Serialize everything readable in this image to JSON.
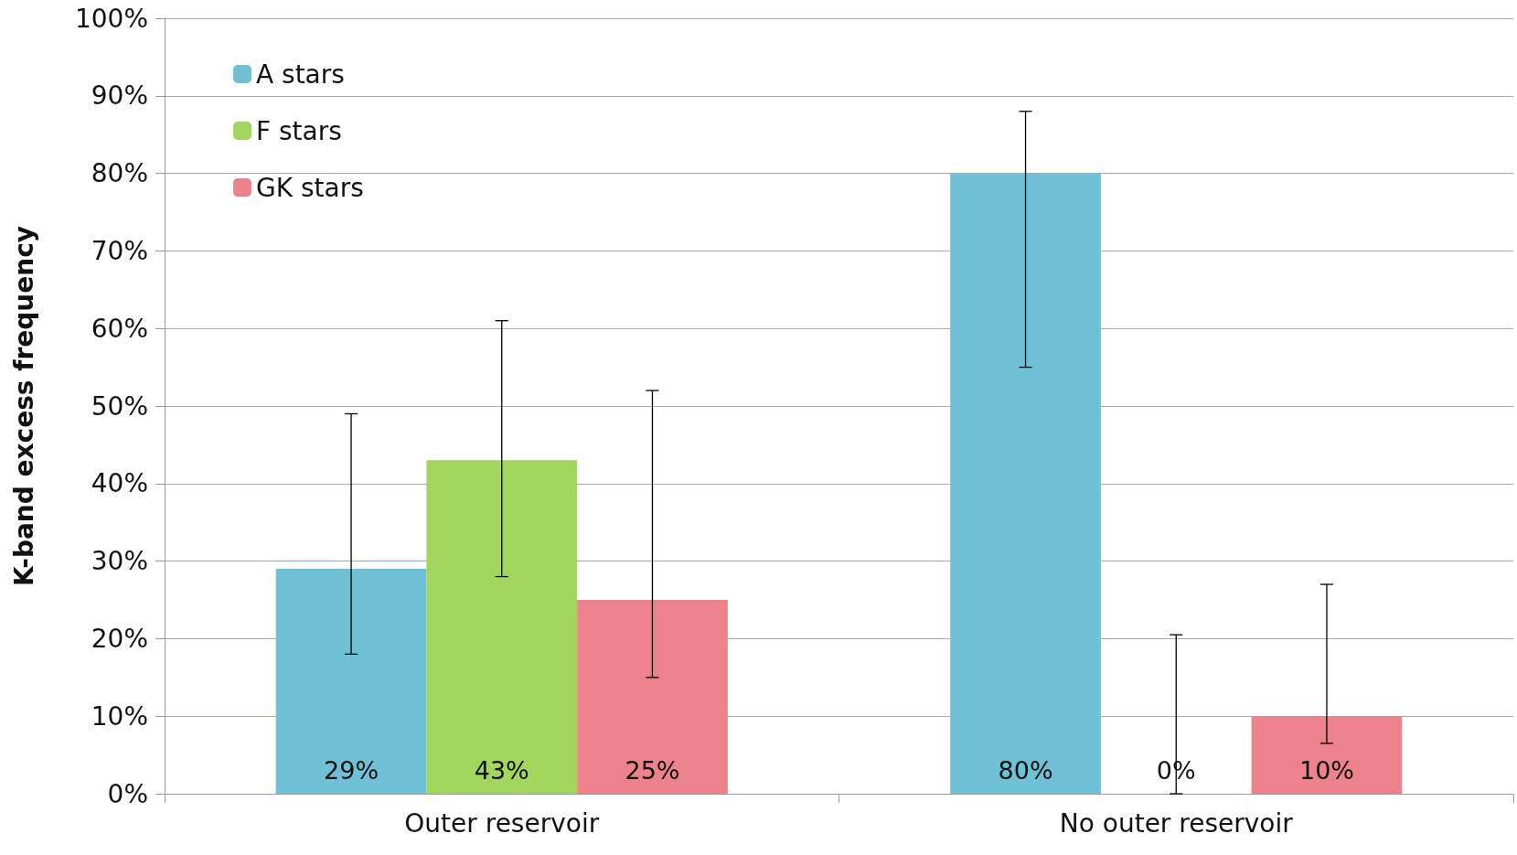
{
  "chart_data": {
    "type": "bar",
    "ylabel": "K-band excess frequency",
    "categories": [
      "Outer reservoir",
      "No outer reservoir"
    ],
    "series": [
      {
        "name": "A stars",
        "color": "#70c0d6",
        "values": [
          29,
          80
        ],
        "value_labels": [
          "29%",
          "80%"
        ],
        "errors": [
          [
            18,
            49
          ],
          [
            55,
            88
          ]
        ]
      },
      {
        "name": "F stars",
        "color": "#a3d65f",
        "values": [
          43,
          0
        ],
        "value_labels": [
          "43%",
          "0%"
        ],
        "errors": [
          [
            28,
            61
          ],
          [
            0,
            20.5
          ]
        ]
      },
      {
        "name": "GK stars",
        "color": "#ec838c",
        "values": [
          25,
          10
        ],
        "value_labels": [
          "25%",
          "10%"
        ],
        "errors": [
          [
            15,
            52
          ],
          [
            6.5,
            27
          ]
        ]
      }
    ],
    "ylim": [
      0,
      100
    ],
    "yticks": [
      {
        "value": 0,
        "label": "0%"
      },
      {
        "value": 10,
        "label": "10%"
      },
      {
        "value": 20,
        "label": "20%"
      },
      {
        "value": 30,
        "label": "30%"
      },
      {
        "value": 40,
        "label": "40%"
      },
      {
        "value": 50,
        "label": "50%"
      },
      {
        "value": 60,
        "label": "60%"
      },
      {
        "value": 70,
        "label": "70%"
      },
      {
        "value": 80,
        "label": "80%"
      },
      {
        "value": 90,
        "label": "90%"
      },
      {
        "value": 100,
        "label": "100%"
      }
    ],
    "grid": "y",
    "legend": "top left"
  }
}
